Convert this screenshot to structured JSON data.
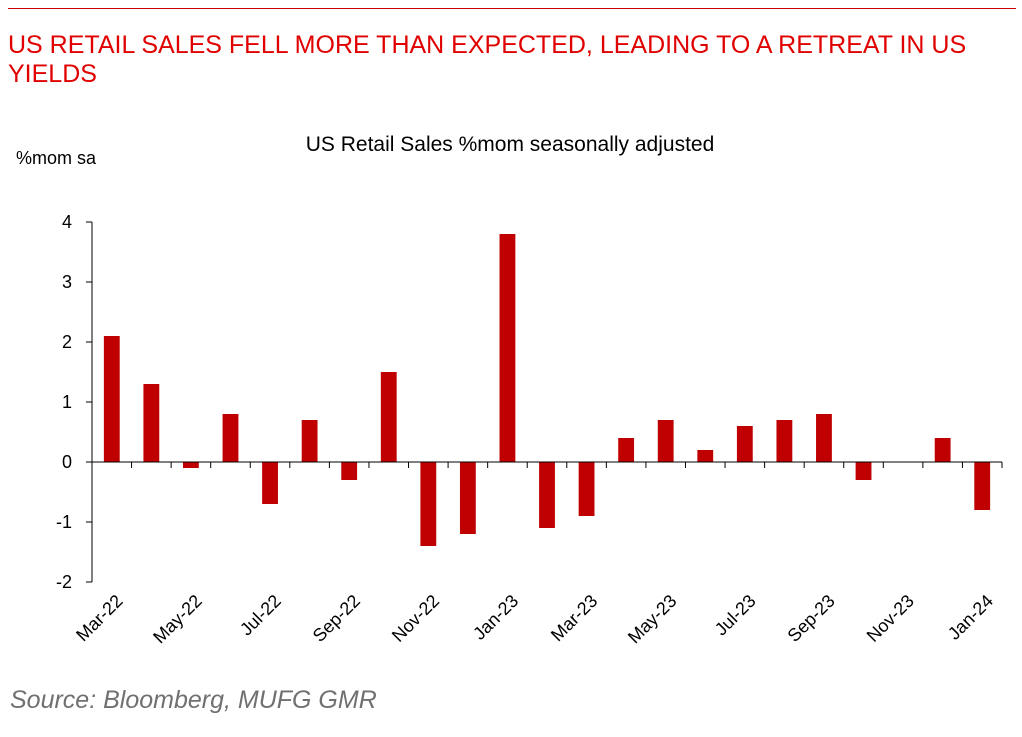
{
  "headline": "US RETAIL SALES FELL MORE THAN EXPECTED, LEADING TO A RETREAT IN US YIELDS",
  "source": "Source: Bloomberg, MUFG GMR",
  "colors": {
    "accent": "#e00000",
    "bar": "#c00000",
    "source_text": "#707070"
  },
  "chart_data": {
    "type": "bar",
    "title": "US Retail Sales %mom seasonally adjusted",
    "ylabel": "%mom sa",
    "xlabel": "",
    "ylim": [
      -2,
      4
    ],
    "yticks": [
      -2,
      -1,
      0,
      1,
      2,
      3,
      4
    ],
    "categories": [
      "Mar-22",
      "Apr-22",
      "May-22",
      "Jun-22",
      "Jul-22",
      "Aug-22",
      "Sep-22",
      "Oct-22",
      "Nov-22",
      "Dec-22",
      "Jan-23",
      "Feb-23",
      "Mar-23",
      "Apr-23",
      "May-23",
      "Jun-23",
      "Jul-23",
      "Aug-23",
      "Sep-23",
      "Oct-23",
      "Nov-23",
      "Dec-23",
      "Jan-24"
    ],
    "x_tick_labels_shown": [
      "Mar-22",
      "May-22",
      "Jul-22",
      "Sep-22",
      "Nov-22",
      "Jan-23",
      "Mar-23",
      "May-23",
      "Jul-23",
      "Sep-23",
      "Nov-23",
      "Jan-24"
    ],
    "values": [
      2.1,
      1.3,
      -0.1,
      0.8,
      -0.7,
      0.7,
      -0.3,
      1.5,
      -1.4,
      -1.2,
      3.8,
      -1.1,
      -0.9,
      0.4,
      0.7,
      0.2,
      0.6,
      0.7,
      0.8,
      -0.3,
      0.0,
      0.4,
      -0.8
    ],
    "grid": false,
    "legend": "none"
  }
}
